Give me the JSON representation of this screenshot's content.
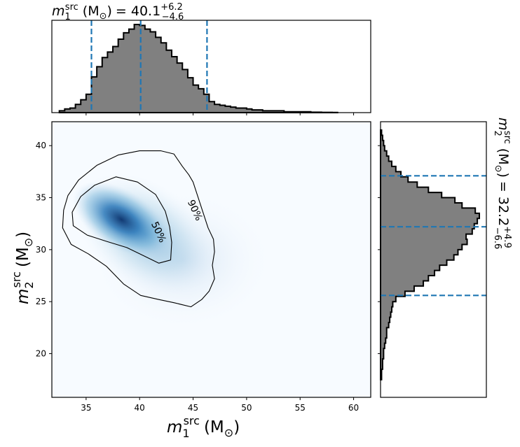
{
  "chart_data": [
    {
      "panel": "marginal m1 (top)",
      "type": "histogram",
      "title": {
        "symbol": "m",
        "subscript": "1",
        "superscript": "src",
        "unit": "(M",
        "unit_sub": "⊙",
        "unit_close": ")",
        "eq": "= 40.1",
        "plus": "+6.2",
        "minus": "−4.6"
      },
      "median": 40.1,
      "interval": [
        35.5,
        46.3
      ],
      "xlim": [
        31.8,
        61.6
      ],
      "bins": [
        [
          32.5,
          33.0,
          0.02
        ],
        [
          33.0,
          33.5,
          0.04
        ],
        [
          33.5,
          34.0,
          0.05
        ],
        [
          34.0,
          34.5,
          0.09
        ],
        [
          34.5,
          35.0,
          0.14
        ],
        [
          35.0,
          35.5,
          0.2
        ],
        [
          35.5,
          36.0,
          0.39
        ],
        [
          36.0,
          36.5,
          0.5
        ],
        [
          36.5,
          37.0,
          0.6
        ],
        [
          37.0,
          37.5,
          0.66
        ],
        [
          37.5,
          38.0,
          0.72
        ],
        [
          38.0,
          38.5,
          0.8
        ],
        [
          38.5,
          39.0,
          0.87
        ],
        [
          39.0,
          39.5,
          0.91
        ],
        [
          39.5,
          40.0,
          0.96
        ],
        [
          40.0,
          40.5,
          0.95
        ],
        [
          40.5,
          41.0,
          0.91
        ],
        [
          41.0,
          41.5,
          0.88
        ],
        [
          41.5,
          42.0,
          0.82
        ],
        [
          42.0,
          42.5,
          0.76
        ],
        [
          42.5,
          43.0,
          0.68
        ],
        [
          43.0,
          43.5,
          0.61
        ],
        [
          43.5,
          44.0,
          0.54
        ],
        [
          44.0,
          44.5,
          0.47
        ],
        [
          44.5,
          45.0,
          0.38
        ],
        [
          45.0,
          45.5,
          0.3
        ],
        [
          45.5,
          46.0,
          0.26
        ],
        [
          46.0,
          46.5,
          0.2
        ],
        [
          46.5,
          47.0,
          0.12
        ],
        [
          47.0,
          47.5,
          0.09
        ],
        [
          47.5,
          48.0,
          0.08
        ],
        [
          48.0,
          48.5,
          0.07
        ],
        [
          48.5,
          49.0,
          0.06
        ],
        [
          49.0,
          49.5,
          0.05
        ],
        [
          49.5,
          50.0,
          0.05
        ],
        [
          50.0,
          50.5,
          0.04
        ],
        [
          50.5,
          51.0,
          0.03
        ],
        [
          51.0,
          51.5,
          0.03
        ],
        [
          51.5,
          52.0,
          0.02
        ],
        [
          52.0,
          52.5,
          0.02
        ],
        [
          52.5,
          53.0,
          0.02
        ],
        [
          53.0,
          53.5,
          0.02
        ],
        [
          53.5,
          54.0,
          0.01
        ],
        [
          54.0,
          54.5,
          0.01
        ],
        [
          54.5,
          55.0,
          0.01
        ],
        [
          55.0,
          55.5,
          0.01
        ],
        [
          55.5,
          56.0,
          0.01
        ],
        [
          56.0,
          56.5,
          0.005
        ],
        [
          56.5,
          57.0,
          0.005
        ],
        [
          57.0,
          57.5,
          0.003
        ],
        [
          57.5,
          58.0,
          0.003
        ],
        [
          58.0,
          58.5,
          0.002
        ]
      ]
    },
    {
      "panel": "joint m1-m2 density",
      "type": "heatmap",
      "xlabel": {
        "symbol": "m",
        "subscript": "1",
        "superscript": "src",
        "unit": "(M",
        "unit_sub": "⊙",
        "unit_close": ")"
      },
      "ylabel": {
        "symbol": "m",
        "subscript": "2",
        "superscript": "src",
        "unit": "(M",
        "unit_sub": "⊙",
        "unit_close": ")"
      },
      "xlim": [
        31.8,
        61.6
      ],
      "ylim": [
        15.8,
        42.3
      ],
      "xticks": [
        35,
        40,
        45,
        50,
        55,
        60
      ],
      "yticks": [
        20,
        25,
        30,
        35,
        40
      ],
      "density_peak": {
        "m1": 37.5,
        "m2": 33.5
      },
      "colormap": "Blues",
      "contours": [
        {
          "label": "50%",
          "label_at": [
            41.8,
            31.7
          ],
          "label_angle": 65,
          "points": [
            [
              35.8,
              36.2
            ],
            [
              37.8,
              37.0
            ],
            [
              39.8,
              36.5
            ],
            [
              41.5,
              35.3
            ],
            [
              42.4,
              33.7
            ],
            [
              42.8,
              32.2
            ],
            [
              43.0,
              30.7
            ],
            [
              42.9,
              29.0
            ],
            [
              41.8,
              28.7
            ],
            [
              40.4,
              29.4
            ],
            [
              38.8,
              30.2
            ],
            [
              36.9,
              30.8
            ],
            [
              35.1,
              31.4
            ],
            [
              33.8,
              32.3
            ],
            [
              33.7,
              33.6
            ],
            [
              34.5,
              35.1
            ]
          ]
        },
        {
          "label": "90%",
          "label_at": [
            45.2,
            33.8
          ],
          "label_angle": 65,
          "points": [
            [
              34.3,
              36.7
            ],
            [
              36.0,
              38.1
            ],
            [
              38.0,
              39.1
            ],
            [
              40.0,
              39.5
            ],
            [
              42.0,
              39.5
            ],
            [
              43.2,
              39.2
            ],
            [
              44.0,
              38.0
            ],
            [
              44.6,
              37.2
            ],
            [
              45.0,
              36.5
            ],
            [
              46.4,
              32.1
            ],
            [
              46.9,
              31.0
            ],
            [
              47.0,
              29.8
            ],
            [
              46.8,
              28.5
            ],
            [
              47.0,
              27.2
            ],
            [
              46.5,
              26.0
            ],
            [
              45.8,
              25.2
            ],
            [
              44.8,
              24.5
            ],
            [
              43.2,
              24.9
            ],
            [
              41.8,
              25.2
            ],
            [
              40.1,
              25.6
            ],
            [
              38.5,
              26.7
            ],
            [
              36.9,
              28.4
            ],
            [
              35.2,
              29.6
            ],
            [
              33.6,
              30.5
            ],
            [
              32.8,
              32.1
            ],
            [
              32.9,
              33.8
            ],
            [
              33.3,
              35.2
            ]
          ]
        }
      ]
    },
    {
      "panel": "marginal m2 (right)",
      "type": "histogram",
      "orientation": "horizontal",
      "title": {
        "symbol": "m",
        "subscript": "2",
        "superscript": "src",
        "unit": "(M",
        "unit_sub": "⊙",
        "unit_close": ")",
        "eq": "= 32.2",
        "plus": "+4.9",
        "minus": "−6.6"
      },
      "median": 32.2,
      "interval": [
        25.6,
        37.1
      ],
      "ylim": [
        15.8,
        42.3
      ],
      "bins": [
        [
          17.5,
          18.0,
          0.01
        ],
        [
          18.0,
          18.5,
          0.01
        ],
        [
          18.5,
          19.0,
          0.02
        ],
        [
          19.0,
          19.5,
          0.02
        ],
        [
          19.5,
          20.0,
          0.03
        ],
        [
          20.0,
          20.5,
          0.03
        ],
        [
          20.5,
          21.0,
          0.04
        ],
        [
          21.0,
          21.5,
          0.05
        ],
        [
          21.5,
          22.0,
          0.06
        ],
        [
          22.0,
          22.5,
          0.06
        ],
        [
          22.5,
          23.0,
          0.08
        ],
        [
          23.0,
          23.5,
          0.09
        ],
        [
          23.5,
          24.0,
          0.1
        ],
        [
          24.0,
          24.5,
          0.11
        ],
        [
          24.5,
          25.0,
          0.12
        ],
        [
          25.0,
          25.5,
          0.15
        ],
        [
          25.5,
          26.0,
          0.24
        ],
        [
          26.0,
          26.5,
          0.33
        ],
        [
          26.5,
          27.0,
          0.42
        ],
        [
          27.0,
          27.5,
          0.47
        ],
        [
          27.5,
          28.0,
          0.53
        ],
        [
          28.0,
          28.5,
          0.58
        ],
        [
          28.5,
          29.0,
          0.65
        ],
        [
          29.0,
          29.5,
          0.72
        ],
        [
          29.5,
          30.0,
          0.76
        ],
        [
          30.0,
          30.5,
          0.8
        ],
        [
          30.5,
          31.0,
          0.85
        ],
        [
          31.0,
          31.5,
          0.84
        ],
        [
          31.5,
          32.0,
          0.9
        ],
        [
          32.0,
          32.5,
          0.92
        ],
        [
          32.5,
          33.0,
          0.95
        ],
        [
          33.0,
          33.5,
          0.97
        ],
        [
          33.5,
          34.0,
          0.93
        ],
        [
          34.0,
          34.5,
          0.8
        ],
        [
          34.5,
          35.0,
          0.73
        ],
        [
          35.0,
          35.5,
          0.6
        ],
        [
          35.5,
          36.0,
          0.47
        ],
        [
          36.0,
          36.5,
          0.36
        ],
        [
          36.5,
          37.0,
          0.27
        ],
        [
          37.0,
          37.5,
          0.2
        ],
        [
          37.5,
          38.0,
          0.15
        ],
        [
          38.0,
          38.5,
          0.11
        ],
        [
          38.5,
          39.0,
          0.08
        ],
        [
          39.0,
          39.5,
          0.06
        ],
        [
          39.5,
          40.0,
          0.04
        ],
        [
          40.0,
          40.5,
          0.03
        ],
        [
          40.5,
          41.0,
          0.02
        ],
        [
          41.0,
          41.5,
          0.01
        ]
      ]
    }
  ],
  "colors": {
    "histogram_fill": "#808080",
    "histogram_edge": "#000000",
    "quantile_line": "#1f77b4",
    "contour_line": "#000000",
    "density_low": "#f7fbff",
    "density_high": "#08306b"
  }
}
